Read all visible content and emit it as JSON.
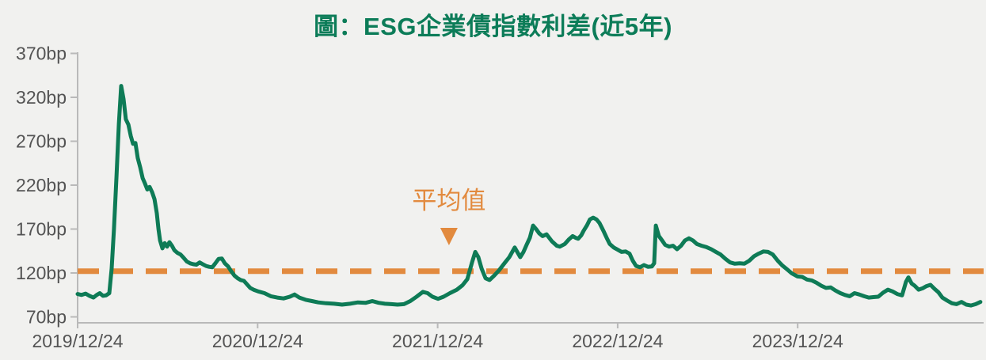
{
  "page": {
    "background_color": "#F1F1EF"
  },
  "chart_data": {
    "type": "line",
    "title": "圖：ESG企業債指數利差(近5年)",
    "title_color": "#0C7C58",
    "unit": "bp",
    "grid": "off",
    "legend": "none",
    "ylim": [
      70,
      370
    ],
    "y_ticks": [
      {
        "v": 370,
        "label": "370bp"
      },
      {
        "v": 320,
        "label": "320bp"
      },
      {
        "v": 270,
        "label": "270bp"
      },
      {
        "v": 220,
        "label": "220bp"
      },
      {
        "v": 170,
        "label": "170bp"
      },
      {
        "v": 120,
        "label": "120bp"
      },
      {
        "v": 70,
        "label": "70bp"
      }
    ],
    "x_ticks": [
      {
        "t": 0,
        "label": "2019/12/24"
      },
      {
        "t": 1,
        "label": "2020/12/24"
      },
      {
        "t": 2,
        "label": "2021/12/24"
      },
      {
        "t": 3,
        "label": "2022/12/24"
      },
      {
        "t": 4,
        "label": "2023/12/24"
      }
    ],
    "axis_color": "#B9B9B9",
    "tick_label_color": "#545454",
    "average_line": {
      "value_bp": 122,
      "label": "平均值",
      "color": "#E28A3E",
      "style": "dashed",
      "annotation_t": 2.063,
      "annotation_marker": "triangle-down-icon",
      "marker_tip_bp": 151.5,
      "label_bp": 193
    },
    "series": [
      {
        "name": "ESG企業債指數利差",
        "color": "#0E7B56",
        "points": [
          [
            0,
            96
          ],
          [
            0.022,
            95
          ],
          [
            0.044,
            96.5
          ],
          [
            0.066,
            94
          ],
          [
            0.088,
            92
          ],
          [
            0.106,
            95
          ],
          [
            0.123,
            97
          ],
          [
            0.141,
            94
          ],
          [
            0.158,
            94.5
          ],
          [
            0.176,
            97
          ],
          [
            0.189,
            125
          ],
          [
            0.202,
            170
          ],
          [
            0.216,
            230
          ],
          [
            0.229,
            290
          ],
          [
            0.242,
            333
          ],
          [
            0.255,
            318
          ],
          [
            0.268,
            295
          ],
          [
            0.282,
            289
          ],
          [
            0.295,
            276
          ],
          [
            0.308,
            267
          ],
          [
            0.321,
            268
          ],
          [
            0.334,
            251
          ],
          [
            0.348,
            240
          ],
          [
            0.361,
            228
          ],
          [
            0.374,
            222
          ],
          [
            0.387,
            215
          ],
          [
            0.4,
            218
          ],
          [
            0.414,
            212
          ],
          [
            0.427,
            204
          ],
          [
            0.44,
            188
          ],
          [
            0.449,
            170
          ],
          [
            0.458,
            157
          ],
          [
            0.471,
            148
          ],
          [
            0.484,
            154
          ],
          [
            0.497,
            150
          ],
          [
            0.51,
            155
          ],
          [
            0.524,
            151
          ],
          [
            0.537,
            146
          ],
          [
            0.554,
            143
          ],
          [
            0.572,
            141
          ],
          [
            0.59,
            137
          ],
          [
            0.607,
            133
          ],
          [
            0.625,
            131
          ],
          [
            0.642,
            130
          ],
          [
            0.66,
            129.5
          ],
          [
            0.678,
            132
          ],
          [
            0.695,
            130
          ],
          [
            0.713,
            128
          ],
          [
            0.73,
            127
          ],
          [
            0.748,
            126.5
          ],
          [
            0.765,
            131
          ],
          [
            0.783,
            136
          ],
          [
            0.801,
            136.5
          ],
          [
            0.818,
            131
          ],
          [
            0.836,
            127.5
          ],
          [
            0.853,
            122
          ],
          [
            0.871,
            117
          ],
          [
            0.889,
            114
          ],
          [
            0.906,
            112
          ],
          [
            0.924,
            111
          ],
          [
            0.941,
            107
          ],
          [
            0.959,
            103
          ],
          [
            0.977,
            101
          ],
          [
            1.003,
            99
          ],
          [
            1.038,
            97
          ],
          [
            1.073,
            93.5
          ],
          [
            1.109,
            92
          ],
          [
            1.144,
            91
          ],
          [
            1.179,
            93
          ],
          [
            1.205,
            95.5
          ],
          [
            1.232,
            92
          ],
          [
            1.267,
            89.5
          ],
          [
            1.302,
            88
          ],
          [
            1.337,
            86.5
          ],
          [
            1.381,
            85.5
          ],
          [
            1.425,
            85
          ],
          [
            1.469,
            84
          ],
          [
            1.513,
            85
          ],
          [
            1.557,
            86.5
          ],
          [
            1.601,
            86
          ],
          [
            1.637,
            88
          ],
          [
            1.672,
            86
          ],
          [
            1.707,
            85
          ],
          [
            1.742,
            84.5
          ],
          [
            1.777,
            84
          ],
          [
            1.813,
            84.5
          ],
          [
            1.848,
            88
          ],
          [
            1.883,
            93
          ],
          [
            1.918,
            98.5
          ],
          [
            1.944,
            97
          ],
          [
            1.971,
            93
          ],
          [
            2.002,
            90.5
          ],
          [
            2.033,
            93
          ],
          [
            2.068,
            97
          ],
          [
            2.107,
            101
          ],
          [
            2.138,
            106
          ],
          [
            2.165,
            113
          ],
          [
            2.191,
            132
          ],
          [
            2.209,
            144
          ],
          [
            2.226,
            138
          ],
          [
            2.244,
            125
          ],
          [
            2.266,
            114
          ],
          [
            2.288,
            112
          ],
          [
            2.314,
            117
          ],
          [
            2.341,
            123
          ],
          [
            2.371,
            131
          ],
          [
            2.398,
            138
          ],
          [
            2.428,
            149
          ],
          [
            2.442,
            144
          ],
          [
            2.459,
            138
          ],
          [
            2.477,
            144
          ],
          [
            2.494,
            152
          ],
          [
            2.512,
            160
          ],
          [
            2.53,
            174
          ],
          [
            2.547,
            170
          ],
          [
            2.565,
            165
          ],
          [
            2.583,
            162
          ],
          [
            2.605,
            164
          ],
          [
            2.635,
            156
          ],
          [
            2.662,
            151
          ],
          [
            2.679,
            150
          ],
          [
            2.706,
            153
          ],
          [
            2.728,
            158
          ],
          [
            2.75,
            162
          ],
          [
            2.767,
            160
          ],
          [
            2.781,
            159
          ],
          [
            2.798,
            163
          ],
          [
            2.811,
            168
          ],
          [
            2.829,
            174
          ],
          [
            2.846,
            181
          ],
          [
            2.864,
            183
          ],
          [
            2.882,
            181
          ],
          [
            2.899,
            177
          ],
          [
            2.921,
            168
          ],
          [
            2.939,
            160
          ],
          [
            2.956,
            153
          ],
          [
            2.978,
            149
          ],
          [
            3,
            146.5
          ],
          [
            3.022,
            144
          ],
          [
            3.044,
            144.5
          ],
          [
            3.066,
            142
          ],
          [
            3.084,
            134
          ],
          [
            3.102,
            128
          ],
          [
            3.124,
            126.5
          ],
          [
            3.146,
            129
          ],
          [
            3.168,
            127
          ],
          [
            3.19,
            127.5
          ],
          [
            3.203,
            131
          ],
          [
            3.212,
            174
          ],
          [
            3.229,
            162
          ],
          [
            3.247,
            157
          ],
          [
            3.264,
            152
          ],
          [
            3.286,
            150
          ],
          [
            3.308,
            151
          ],
          [
            3.33,
            147
          ],
          [
            3.352,
            151
          ],
          [
            3.374,
            157
          ],
          [
            3.396,
            159.5
          ],
          [
            3.418,
            157
          ],
          [
            3.44,
            153
          ],
          [
            3.467,
            151
          ],
          [
            3.493,
            149.5
          ],
          [
            3.52,
            147
          ],
          [
            3.546,
            144
          ],
          [
            3.572,
            141
          ],
          [
            3.599,
            136
          ],
          [
            3.625,
            132
          ],
          [
            3.651,
            130.5
          ],
          [
            3.678,
            131
          ],
          [
            3.704,
            130.5
          ],
          [
            3.731,
            134
          ],
          [
            3.757,
            139
          ],
          [
            3.783,
            142
          ],
          [
            3.81,
            144.5
          ],
          [
            3.836,
            144
          ],
          [
            3.862,
            141
          ],
          [
            3.889,
            134
          ],
          [
            3.915,
            128.5
          ],
          [
            3.942,
            124
          ],
          [
            3.968,
            119.5
          ],
          [
            3.999,
            116
          ],
          [
            4.025,
            115.5
          ],
          [
            4.052,
            112.5
          ],
          [
            4.078,
            111.5
          ],
          [
            4.104,
            109
          ],
          [
            4.131,
            105.5
          ],
          [
            4.157,
            103
          ],
          [
            4.184,
            103.5
          ],
          [
            4.21,
            100
          ],
          [
            4.237,
            97
          ],
          [
            4.263,
            95
          ],
          [
            4.289,
            93.5
          ],
          [
            4.316,
            97
          ],
          [
            4.342,
            95.5
          ],
          [
            4.369,
            93.5
          ],
          [
            4.395,
            92
          ],
          [
            4.421,
            92.5
          ],
          [
            4.448,
            93
          ],
          [
            4.474,
            97.5
          ],
          [
            4.501,
            101
          ],
          [
            4.527,
            99
          ],
          [
            4.553,
            96
          ],
          [
            4.58,
            94.5
          ],
          [
            4.602,
            110
          ],
          [
            4.615,
            115
          ],
          [
            4.633,
            108
          ],
          [
            4.65,
            105.5
          ],
          [
            4.672,
            101
          ],
          [
            4.694,
            102.5
          ],
          [
            4.716,
            105
          ],
          [
            4.738,
            106.5
          ],
          [
            4.76,
            102
          ],
          [
            4.782,
            98
          ],
          [
            4.804,
            92
          ],
          [
            4.831,
            88.5
          ],
          [
            4.857,
            85.5
          ],
          [
            4.883,
            84.5
          ],
          [
            4.91,
            87
          ],
          [
            4.936,
            84
          ],
          [
            4.962,
            83
          ],
          [
            4.989,
            84.5
          ],
          [
            5.015,
            87
          ]
        ]
      }
    ]
  }
}
